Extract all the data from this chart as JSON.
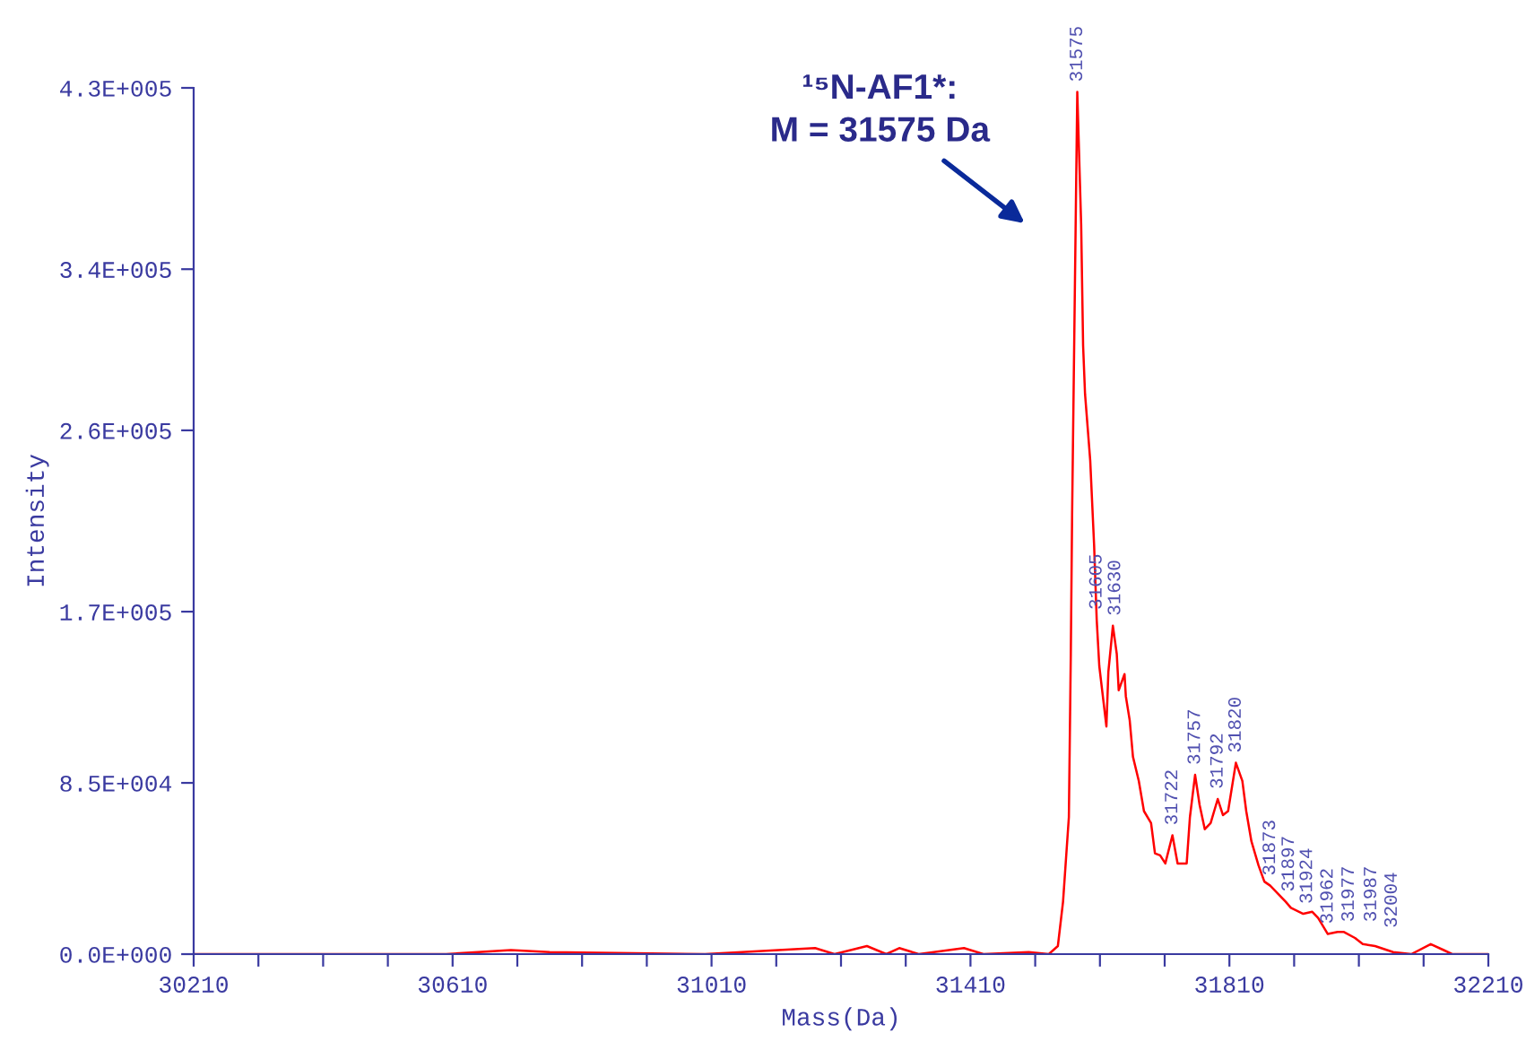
{
  "chart_data": {
    "type": "line",
    "xlabel": "Mass(Da)",
    "ylabel": "Intensity",
    "annotations": [
      "¹⁵N-AF1*:\nM = 31575 Da",
      {
        "text": "31575",
        "x": 31575,
        "y": 428000
      },
      {
        "text": "31605",
        "x": 31605,
        "y": 166000
      },
      {
        "text": "31630",
        "x": 31630,
        "y": 163000
      },
      {
        "text": "31722",
        "x": 31722,
        "y": 59000
      },
      {
        "text": "31757",
        "x": 31757,
        "y": 89000
      },
      {
        "text": "31792",
        "x": 31792,
        "y": 77000
      },
      {
        "text": "31820",
        "x": 31820,
        "y": 95000
      },
      {
        "text": "31873",
        "x": 31873,
        "y": 34000
      },
      {
        "text": "31897",
        "x": 31897,
        "y": 26000
      },
      {
        "text": "31924",
        "x": 31924,
        "y": 20000
      },
      {
        "text": "31962",
        "x": 31962,
        "y": 10000
      },
      {
        "text": "31977",
        "x": 31977,
        "y": 11000
      },
      {
        "text": "31987",
        "x": 31987,
        "y": 11000
      },
      {
        "text": "32004",
        "x": 32004,
        "y": 8000
      }
    ],
    "xlim": [
      30210,
      32210
    ],
    "xticks": [
      30210,
      {
        "value": 30310,
        "label": null
      },
      {
        "value": 30410,
        "label": null
      },
      {
        "value": 30510,
        "label": null
      },
      30610,
      {
        "value": 30710,
        "label": null
      },
      {
        "value": 30810,
        "label": null
      },
      {
        "value": 30910,
        "label": null
      },
      31010,
      {
        "value": 31110,
        "label": null
      },
      {
        "value": 31210,
        "label": null
      },
      {
        "value": 31310,
        "label": null
      },
      31410,
      {
        "value": 31510,
        "label": null
      },
      {
        "value": 31610,
        "label": null
      },
      {
        "value": 31710,
        "label": null
      },
      31810,
      {
        "value": 31910,
        "label": null
      },
      {
        "value": 32010,
        "label": null
      },
      {
        "value": 32110,
        "label": null
      },
      32210
    ],
    "ylim": [
      0,
      430000
    ],
    "yticks": [
      {
        "value": 0,
        "label": "0.0E+000"
      },
      {
        "value": 85000,
        "label": "8.5E+004"
      },
      {
        "value": 170000,
        "label": "1.7E+005"
      },
      {
        "value": 260000,
        "label": "2.6E+005"
      },
      {
        "value": 340000,
        "label": "3.4E+005"
      },
      {
        "value": 430000,
        "label": "4.3E+005"
      }
    ],
    "grid": false,
    "legend": false,
    "marker": "none",
    "line_style": "solid",
    "series": [
      {
        "color": "#ff0000",
        "x": [
          30210,
          30600,
          30700,
          30760,
          31000,
          31170,
          31200,
          31250,
          31280,
          31300,
          31330,
          31400,
          31430,
          31500,
          31531,
          31545,
          31553,
          31562,
          31565,
          31567,
          31575,
          31581,
          31584,
          31587,
          31595,
          31601,
          31605,
          31609,
          31620,
          31623,
          31630,
          31636,
          31639,
          31648,
          31650,
          31656,
          31661,
          31670,
          31678,
          31689,
          31695,
          31703,
          31711,
          31722,
          31730,
          31744,
          31749,
          31757,
          31764,
          31772,
          31781,
          31792,
          31800,
          31808,
          31820,
          31830,
          31836,
          31844,
          31855,
          31864,
          31873,
          31897,
          31905,
          31924,
          31938,
          31947,
          31962,
          31977,
          31987,
          32004,
          32016,
          32035,
          32063,
          32091,
          32121,
          32141,
          32154,
          32210
        ],
        "values": [
          0,
          0,
          2000,
          1000,
          0,
          3000,
          0,
          4000,
          0,
          3000,
          0,
          3000,
          0,
          1000,
          0,
          4000,
          26000,
          68000,
          149000,
          218000,
          428000,
          362000,
          302000,
          278000,
          245000,
          203000,
          166000,
          143000,
          113000,
          140000,
          163000,
          149000,
          131000,
          139000,
          128000,
          116000,
          98000,
          86000,
          71000,
          65000,
          50000,
          49000,
          45000,
          59000,
          45000,
          45000,
          68000,
          89000,
          74000,
          62000,
          65000,
          77000,
          69000,
          71000,
          95000,
          86000,
          71000,
          56000,
          44000,
          36000,
          34000,
          26000,
          23000,
          20000,
          21000,
          18000,
          10000,
          11000,
          11000,
          8000,
          5000,
          4000,
          1000,
          0,
          5000,
          2000,
          0,
          0
        ]
      }
    ]
  }
}
